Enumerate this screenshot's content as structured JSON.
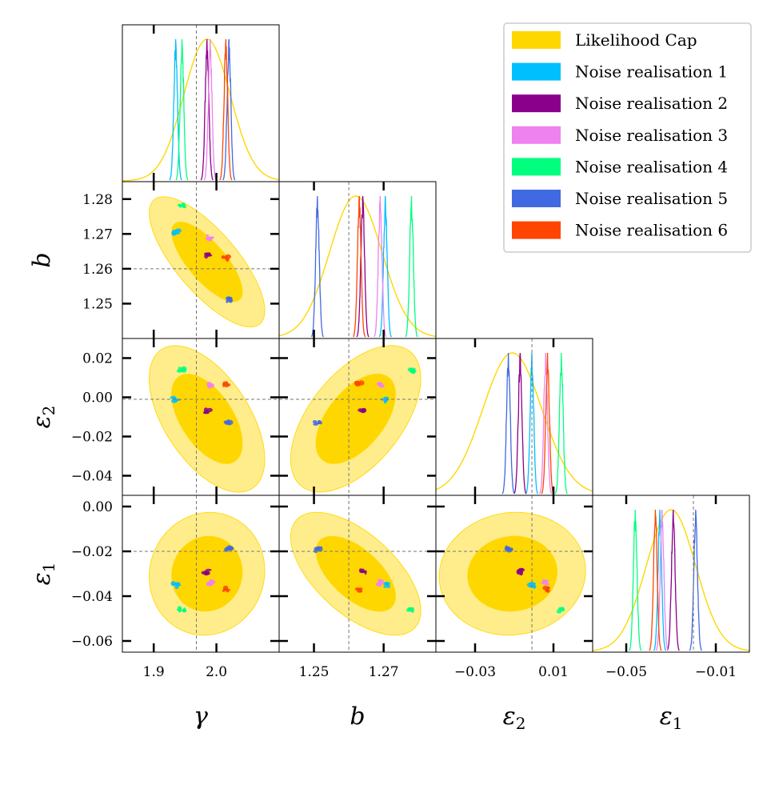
{
  "chart_data": {
    "type": "corner",
    "parameters": [
      {
        "key": "gamma",
        "label": "γ",
        "range": [
          1.85,
          2.1
        ],
        "truth": 1.968,
        "ticks": [
          1.9,
          2.0
        ],
        "tick_labels": [
          "1.9",
          "2.0"
        ]
      },
      {
        "key": "b",
        "label": "b",
        "range": [
          1.24,
          1.285
        ],
        "truth": 1.26,
        "ticks": [
          1.25,
          1.27
        ],
        "tick_labels": [
          "1.25",
          "1.27"
        ],
        "y_ticks": [
          1.25,
          1.26,
          1.27,
          1.28
        ],
        "y_tick_labels": [
          "1.25",
          "1.26",
          "1.27",
          "1.28"
        ]
      },
      {
        "key": "eps2",
        "label": "ε",
        "label_sub": "2",
        "range": [
          -0.05,
          0.03
        ],
        "truth": -0.001,
        "ticks": [
          -0.03,
          0.01
        ],
        "tick_labels": [
          "−0.03",
          "0.01"
        ],
        "y_ticks": [
          -0.04,
          -0.02,
          0.0,
          0.02
        ],
        "y_tick_labels": [
          "−0.04",
          "−0.02",
          "0.00",
          "0.02"
        ]
      },
      {
        "key": "eps1",
        "label": "ε",
        "label_sub": "1",
        "range": [
          -0.065,
          0.005
        ],
        "truth": -0.02,
        "ticks": [
          -0.05,
          -0.01
        ],
        "tick_labels": [
          "−0.05",
          "−0.01"
        ],
        "y_ticks": [
          -0.06,
          -0.04,
          -0.02,
          0.0
        ],
        "y_tick_labels": [
          "−0.06",
          "−0.04",
          "−0.02",
          "0.00"
        ]
      }
    ],
    "legend": {
      "placement": "top-right",
      "entries": [
        {
          "name": "Likelihood Cap",
          "color": "#FFD700"
        },
        {
          "name": "Noise realisation 1",
          "color": "#00BFFF"
        },
        {
          "name": "Noise realisation 2",
          "color": "#8B008B"
        },
        {
          "name": "Noise realisation 3",
          "color": "#EE82EE"
        },
        {
          "name": "Noise realisation 4",
          "color": "#00FF7F"
        },
        {
          "name": "Noise realisation 5",
          "color": "#4169E1"
        },
        {
          "name": "Noise realisation 6",
          "color": "#FF4500"
        }
      ]
    },
    "likelihood_cap": {
      "color": "#FFD700",
      "mean": {
        "gamma": 1.985,
        "b": 1.262,
        "eps2": -0.011,
        "eps1": -0.03
      },
      "sigma": {
        "gamma": 0.037,
        "b": 0.0075,
        "eps2": 0.015,
        "eps1": 0.011
      }
    },
    "realisations": [
      {
        "name": "Noise realisation 1",
        "color": "#00BFFF",
        "gamma": 1.935,
        "b": 1.2705,
        "eps2": -0.001,
        "eps1": -0.035
      },
      {
        "name": "Noise realisation 2",
        "color": "#8B008B",
        "gamma": 1.985,
        "b": 1.264,
        "eps2": -0.007,
        "eps1": -0.029
      },
      {
        "name": "Noise realisation 3",
        "color": "#EE82EE",
        "gamma": 1.99,
        "b": 1.269,
        "eps2": 0.006,
        "eps1": -0.034
      },
      {
        "name": "Noise realisation 4",
        "color": "#00FF7F",
        "gamma": 1.945,
        "b": 1.278,
        "eps2": 0.014,
        "eps1": -0.046
      },
      {
        "name": "Noise realisation 5",
        "color": "#4169E1",
        "gamma": 2.02,
        "b": 1.251,
        "eps2": -0.013,
        "eps1": -0.019
      },
      {
        "name": "Noise realisation 6",
        "color": "#FF4500",
        "gamma": 2.015,
        "b": 1.263,
        "eps2": 0.007,
        "eps1": -0.037
      }
    ]
  }
}
